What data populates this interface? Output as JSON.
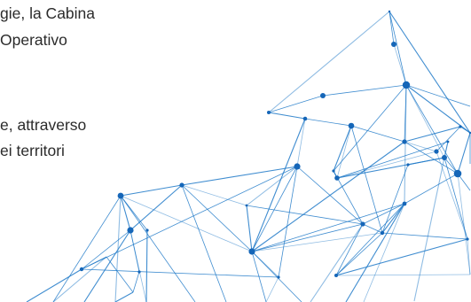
{
  "text": {
    "lines": [
      "gie, la Cabina",
      "Operativo",
      "e, attraverso",
      "ei territori"
    ]
  },
  "graphic": {
    "line_color": "#1f79c8",
    "node_color": "#1566b8"
  }
}
